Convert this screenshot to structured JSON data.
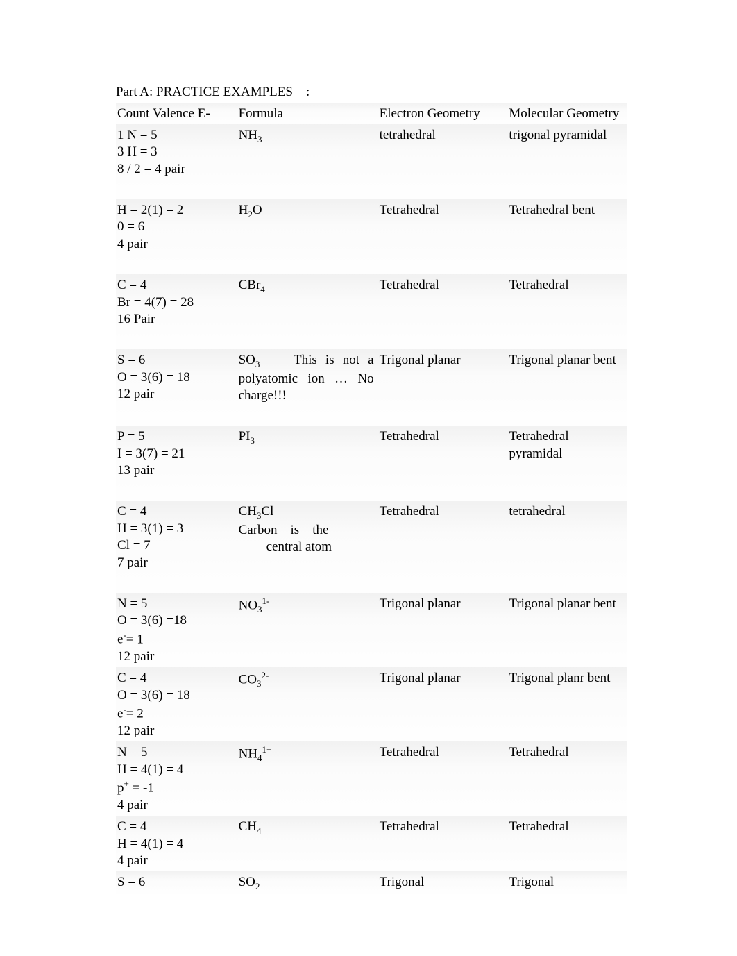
{
  "title": "Part A:  PRACTICE EXAMPLES    :",
  "headers": {
    "col1": "Count   Valence E-",
    "col2": "Formula",
    "col3": "Electron Geometry",
    "col4": "Molecular Geometry"
  },
  "rows": [
    {
      "count": [
        "1 N = 5",
        "3 H = 3",
        "8 / 2  = 4 pair"
      ],
      "formula_html": "NH<span class='sub'>3</span>",
      "egeom": "tetrahedral",
      "mgeom": "trigonal pyramidal",
      "tall": true
    },
    {
      "count": [
        "H = 2(1) = 2",
        "0 = 6",
        "4 pair"
      ],
      "formula_html": "H<span class='sub'>2</span>O",
      "egeom": "Tetrahedral",
      "mgeom": "Tetrahedral bent",
      "tall": true
    },
    {
      "count": [
        "C  = 4",
        "Br = 4(7) = 28",
        "16 Pair"
      ],
      "formula_html": "CBr<span class='sub'>4</span>",
      "egeom": "Tetrahedral",
      "mgeom": "Tetrahedral",
      "tall": true
    },
    {
      "count": [
        "S = 6",
        "O = 3(6) = 18",
        "12 pair"
      ],
      "formula_html": "<div class='formula-note'>SO<span class='sub'>3</span>&nbsp;&nbsp;&nbsp;&nbsp;This is not a polyatomic ion … No charge!!!</div>",
      "egeom": "Trigonal planar",
      "mgeom": "Trigonal planar bent",
      "tall": true
    },
    {
      "count": [
        "P = 5",
        "I = 3(7) = 21",
        "13 pair"
      ],
      "formula_html": "PI<span class='sub'>3</span>",
      "egeom": "Tetrahedral",
      "mgeom": "Tetrahedral pyramidal",
      "tall": true
    },
    {
      "count": [
        "C = 4",
        "H = 3(1) = 3",
        "Cl = 7",
        "7 pair"
      ],
      "formula_html": "<div>CH<span class='sub'>3</span>Cl</div><div class='formula-note'>Carbon&nbsp;&nbsp;&nbsp;&nbsp;is&nbsp;&nbsp;&nbsp;&nbsp;the</div><div style='padding-left:40px'>central atom</div>",
      "egeom": "Tetrahedral",
      "mgeom": "tetrahedral",
      "tall": true
    },
    {
      "count": [
        "N = 5",
        "O = 3(6) =18",
        "e<span class='sup'>-</span>= 1",
        "12 pair"
      ],
      "formula_html": "NO<span class='sub'>3</span><span class='sup'>1-</span>",
      "egeom": "Trigonal planar",
      "mgeom": "Trigonal planar bent",
      "tall": false
    },
    {
      "count": [
        "C = 4",
        "O = 3(6) = 18",
        "e<span class='sup'>-</span>= 2",
        "12 pair"
      ],
      "formula_html": "CO<span class='sub'>3</span><span class='sup'>2-</span>",
      "egeom": "Trigonal planar",
      "mgeom": "Trigonal planr bent",
      "tall": false
    },
    {
      "count": [
        "N = 5",
        "H = 4(1) = 4",
        "p<span class='sup'>+</span> = -1",
        "4 pair"
      ],
      "formula_html": "NH<span class='sub'>4</span><span class='sup'>1+</span>",
      "egeom": "Tetrahedral",
      "mgeom": "Tetrahedral",
      "tall": false
    },
    {
      "count": [
        "C = 4",
        "H = 4(1) = 4",
        "4 pair"
      ],
      "formula_html": "CH<span class='sub'>4</span>",
      "egeom": "Tetrahedral",
      "mgeom": "Tetrahedral",
      "tall": false
    },
    {
      "count": [
        "S = 6"
      ],
      "formula_html": "SO<span class='sub'>2</span>",
      "egeom": "Trigonal",
      "mgeom": "Trigonal",
      "tall": false
    }
  ]
}
